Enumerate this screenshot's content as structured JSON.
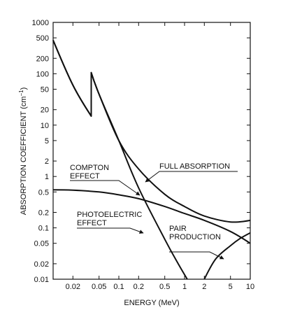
{
  "chart_data": {
    "type": "line",
    "xscale": "log",
    "yscale": "log",
    "xlim": [
      0.01,
      10
    ],
    "ylim": [
      0.01,
      1000
    ],
    "xlabel": "ENERGY (MeV)",
    "ylabel": "ABSORPTION COEFFICIENT (cm",
    "ylabel_sup": "−1",
    "ylabel_close": ")",
    "x_ticks": [
      0.02,
      0.05,
      0.1,
      0.2,
      0.5,
      1,
      2,
      5,
      10
    ],
    "x_tick_labels": [
      "0.02",
      "0.05",
      "0.1",
      "0.2",
      "0.5",
      "1",
      "2",
      "5",
      "10"
    ],
    "y_ticks": [
      0.01,
      0.02,
      0.05,
      0.1,
      0.2,
      0.5,
      1,
      2,
      5,
      10,
      20,
      50,
      100,
      200,
      500,
      1000
    ],
    "y_tick_labels": [
      "0.01",
      "0.02",
      "0.05",
      "0.1",
      "0.2",
      "0.5",
      "1",
      "2",
      "5",
      "10",
      "20",
      "50",
      "100",
      "200",
      "500",
      "1000"
    ],
    "grid": false,
    "series": [
      {
        "label_lines": [
          "COMPTON",
          "EFFECT"
        ],
        "points": [
          [
            0.01,
            0.55
          ],
          [
            0.02,
            0.54
          ],
          [
            0.05,
            0.5
          ],
          [
            0.1,
            0.44
          ],
          [
            0.2,
            0.37
          ],
          [
            0.5,
            0.26
          ],
          [
            1,
            0.19
          ],
          [
            2,
            0.14
          ],
          [
            5,
            0.085
          ],
          [
            10,
            0.05
          ]
        ]
      },
      {
        "label_lines": [
          "PHOTOELECTRIC",
          "EFFECT"
        ],
        "points": [
          [
            0.01,
            450
          ],
          [
            0.02,
            60
          ],
          [
            0.038,
            15
          ],
          [
            0.038,
            105
          ],
          [
            0.05,
            40
          ],
          [
            0.1,
            5
          ],
          [
            0.2,
            0.6
          ],
          [
            0.5,
            0.06
          ],
          [
            0.8,
            0.02
          ],
          [
            1.1,
            0.01
          ]
        ]
      },
      {
        "label_lines": [
          "PAIR",
          "PRODUCTION"
        ],
        "points": [
          [
            2.0,
            0.01
          ],
          [
            3,
            0.025
          ],
          [
            5,
            0.045
          ],
          [
            7,
            0.062
          ],
          [
            10,
            0.08
          ]
        ]
      },
      {
        "label_lines": [
          "FULL ABSORPTION"
        ],
        "points": [
          [
            0.01,
            450
          ],
          [
            0.02,
            60
          ],
          [
            0.038,
            15
          ],
          [
            0.038,
            105
          ],
          [
            0.05,
            40
          ],
          [
            0.1,
            5
          ],
          [
            0.2,
            1.4
          ],
          [
            0.5,
            0.45
          ],
          [
            1,
            0.26
          ],
          [
            2,
            0.17
          ],
          [
            5,
            0.13
          ],
          [
            10,
            0.14
          ]
        ]
      }
    ]
  }
}
